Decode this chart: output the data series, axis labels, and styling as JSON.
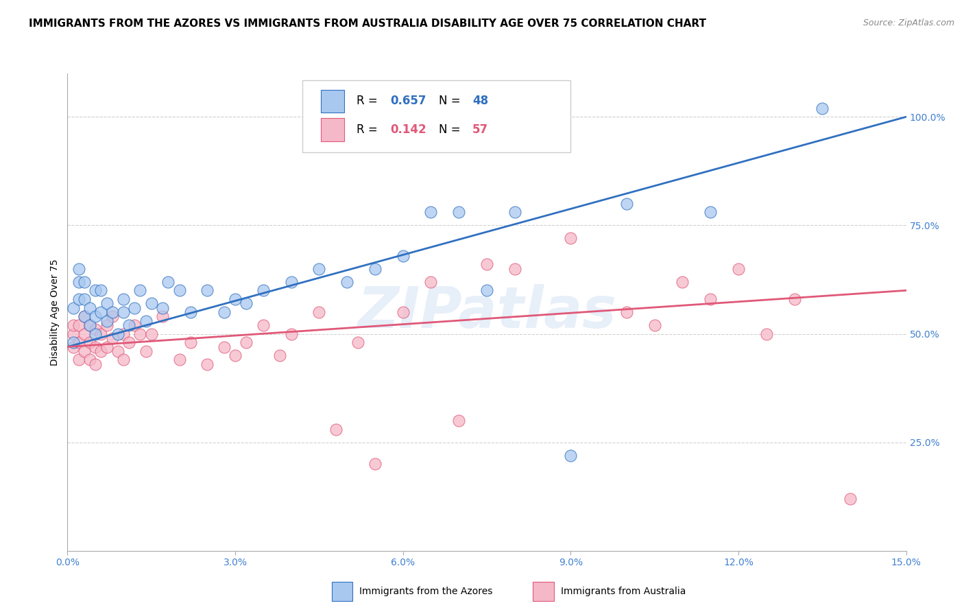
{
  "title": "IMMIGRANTS FROM THE AZORES VS IMMIGRANTS FROM AUSTRALIA DISABILITY AGE OVER 75 CORRELATION CHART",
  "source": "Source: ZipAtlas.com",
  "ylabel": "Disability Age Over 75",
  "legend_label1": "Immigrants from the Azores",
  "legend_label2": "Immigrants from Australia",
  "r1": 0.657,
  "n1": 48,
  "r2": 0.142,
  "n2": 57,
  "color1": "#a8c8f0",
  "color2": "#f5b8c8",
  "line_color1": "#3070c0",
  "line_color2": "#e05878",
  "xmin": 0.0,
  "xmax": 0.15,
  "ymin": 0.0,
  "ymax": 1.1,
  "yticks_right": [
    0.25,
    0.5,
    0.75,
    1.0
  ],
  "ytick_labels_right": [
    "25.0%",
    "50.0%",
    "75.0%",
    "100.0%"
  ],
  "xticks": [
    0.0,
    0.03,
    0.06,
    0.09,
    0.12,
    0.15
  ],
  "xtick_labels": [
    "0.0%",
    "3.0%",
    "6.0%",
    "9.0%",
    "12.0%",
    "15.0%"
  ],
  "background_color": "#ffffff",
  "grid_color": "#d0d0d0",
  "watermark_text": "ZIPatlas",
  "azores_x": [
    0.001,
    0.001,
    0.002,
    0.002,
    0.002,
    0.003,
    0.003,
    0.003,
    0.004,
    0.004,
    0.005,
    0.005,
    0.005,
    0.006,
    0.006,
    0.007,
    0.007,
    0.008,
    0.009,
    0.01,
    0.01,
    0.011,
    0.012,
    0.013,
    0.014,
    0.015,
    0.017,
    0.018,
    0.02,
    0.022,
    0.025,
    0.028,
    0.03,
    0.032,
    0.035,
    0.04,
    0.045,
    0.05,
    0.055,
    0.06,
    0.065,
    0.07,
    0.075,
    0.08,
    0.09,
    0.1,
    0.115,
    0.135
  ],
  "azores_y": [
    0.48,
    0.56,
    0.58,
    0.62,
    0.65,
    0.54,
    0.58,
    0.62,
    0.52,
    0.56,
    0.5,
    0.54,
    0.6,
    0.55,
    0.6,
    0.53,
    0.57,
    0.55,
    0.5,
    0.55,
    0.58,
    0.52,
    0.56,
    0.6,
    0.53,
    0.57,
    0.56,
    0.62,
    0.6,
    0.55,
    0.6,
    0.55,
    0.58,
    0.57,
    0.6,
    0.62,
    0.65,
    0.62,
    0.65,
    0.68,
    0.78,
    0.78,
    0.6,
    0.78,
    0.22,
    0.8,
    0.78,
    1.02
  ],
  "australia_x": [
    0.001,
    0.001,
    0.001,
    0.002,
    0.002,
    0.002,
    0.003,
    0.003,
    0.003,
    0.004,
    0.004,
    0.004,
    0.005,
    0.005,
    0.005,
    0.006,
    0.006,
    0.007,
    0.007,
    0.008,
    0.008,
    0.009,
    0.01,
    0.01,
    0.011,
    0.012,
    0.013,
    0.014,
    0.015,
    0.017,
    0.02,
    0.022,
    0.025,
    0.028,
    0.03,
    0.032,
    0.035,
    0.038,
    0.04,
    0.045,
    0.048,
    0.052,
    0.055,
    0.06,
    0.065,
    0.07,
    0.075,
    0.08,
    0.09,
    0.1,
    0.105,
    0.11,
    0.115,
    0.12,
    0.125,
    0.13,
    0.14
  ],
  "australia_y": [
    0.47,
    0.5,
    0.52,
    0.44,
    0.48,
    0.52,
    0.46,
    0.5,
    0.54,
    0.44,
    0.48,
    0.52,
    0.43,
    0.47,
    0.51,
    0.46,
    0.5,
    0.47,
    0.52,
    0.49,
    0.54,
    0.46,
    0.44,
    0.5,
    0.48,
    0.52,
    0.5,
    0.46,
    0.5,
    0.54,
    0.44,
    0.48,
    0.43,
    0.47,
    0.45,
    0.48,
    0.52,
    0.45,
    0.5,
    0.55,
    0.28,
    0.48,
    0.2,
    0.55,
    0.62,
    0.3,
    0.66,
    0.65,
    0.72,
    0.55,
    0.52,
    0.62,
    0.58,
    0.65,
    0.5,
    0.58,
    0.12
  ],
  "title_fontsize": 11,
  "source_fontsize": 9,
  "axis_label_fontsize": 10,
  "tick_fontsize": 10,
  "legend_fontsize": 12
}
